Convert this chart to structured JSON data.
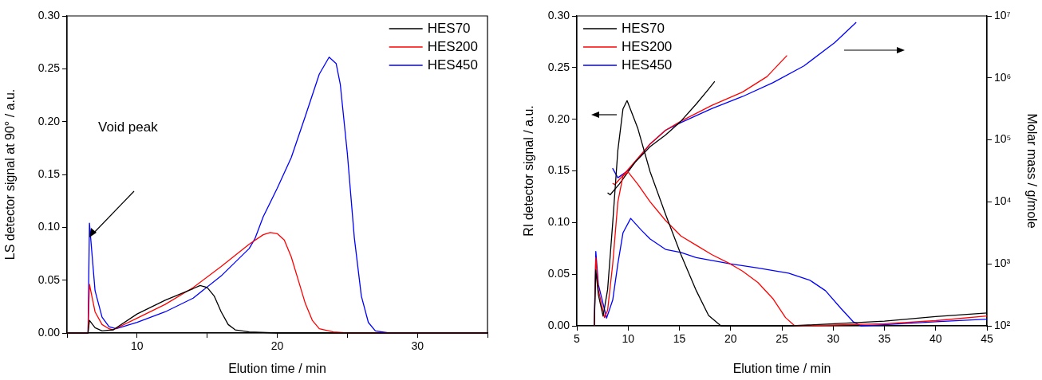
{
  "chart_data": [
    {
      "type": "line",
      "xlabel": "Elution time / min",
      "ylabel": "LS detector signal at 90° / a.u.",
      "xlim": [
        5,
        35
      ],
      "xticks": [
        {
          "value": 5,
          "label": null
        },
        10,
        {
          "value": 15,
          "label": null
        },
        20,
        {
          "value": 25,
          "label": null
        },
        30,
        {
          "value": 35,
          "label": null
        }
      ],
      "ylim": [
        0,
        0.3
      ],
      "yticks": [
        {
          "value": 0,
          "label": "0.00"
        },
        {
          "value": 0.05,
          "label": "0.05"
        },
        {
          "value": 0.1,
          "label": "0.10"
        },
        {
          "value": 0.15,
          "label": "0.15"
        },
        {
          "value": 0.2,
          "label": "0.20"
        },
        {
          "value": 0.25,
          "label": "0.25"
        },
        {
          "value": 0.3,
          "label": "0.30"
        }
      ],
      "legend": "top right",
      "annotations": [
        "Void peak"
      ],
      "series": [
        {
          "name": "HES70",
          "color": "#000000",
          "x": [
            5,
            6.5,
            6.6,
            7,
            7.5,
            8.3,
            10,
            12,
            14,
            14.5,
            15,
            15.5,
            16,
            16.5,
            17,
            18,
            20,
            25,
            35
          ],
          "values": [
            0,
            0,
            0.012,
            0.005,
            0.002,
            0.003,
            0.018,
            0.031,
            0.042,
            0.045,
            0.043,
            0.035,
            0.02,
            0.008,
            0.003,
            0.001,
            0,
            0,
            0
          ]
        },
        {
          "name": "HES200",
          "color": "#ff0000",
          "x": [
            5,
            6.5,
            6.6,
            7,
            7.5,
            8,
            8.3,
            10,
            12,
            14,
            16,
            18,
            19,
            19.5,
            20,
            20.5,
            21,
            21.5,
            22,
            22.5,
            23,
            24,
            25,
            35
          ],
          "values": [
            0,
            0,
            0.046,
            0.02,
            0.008,
            0.004,
            0.003,
            0.014,
            0.027,
            0.043,
            0.063,
            0.084,
            0.093,
            0.095,
            0.094,
            0.088,
            0.072,
            0.05,
            0.028,
            0.012,
            0.004,
            0.001,
            0,
            0
          ]
        },
        {
          "name": "HES450",
          "color": "#0000ff",
          "x": [
            5,
            6.5,
            6.6,
            7,
            7.5,
            8,
            8.5,
            10,
            12,
            14,
            16,
            18,
            18.4,
            19,
            20,
            21,
            22,
            23,
            23.7,
            24.2,
            24.5,
            25,
            25.5,
            26,
            26.5,
            27,
            28,
            35
          ],
          "values": [
            0,
            0,
            0.104,
            0.04,
            0.015,
            0.006,
            0.004,
            0.01,
            0.02,
            0.033,
            0.054,
            0.08,
            0.089,
            0.11,
            0.137,
            0.166,
            0.205,
            0.245,
            0.261,
            0.255,
            0.235,
            0.17,
            0.09,
            0.035,
            0.01,
            0.002,
            0,
            0
          ]
        }
      ]
    },
    {
      "type": "line",
      "xlabel": "Elution time / min",
      "ylabel": "RI detector signal / a.u.",
      "y2label": "Molar mass / g/mole",
      "xlim": [
        5,
        45
      ],
      "xticks": [
        5,
        10,
        15,
        20,
        25,
        30,
        35,
        40,
        45
      ],
      "ylim": [
        0,
        0.3
      ],
      "yticks": [
        {
          "value": 0,
          "label": "0.00"
        },
        {
          "value": 0.05,
          "label": "0.05"
        },
        {
          "value": 0.1,
          "label": "0.10"
        },
        {
          "value": 0.15,
          "label": "0.15"
        },
        {
          "value": 0.2,
          "label": "0.20"
        },
        {
          "value": 0.25,
          "label": "0.25"
        },
        {
          "value": 0.3,
          "label": "0.30"
        }
      ],
      "log": "y2",
      "y2lim": [
        100,
        10000000
      ],
      "y2ticks": [
        {
          "value": 100,
          "label": "10²"
        },
        {
          "value": 1000,
          "label": "10³"
        },
        {
          "value": 10000,
          "label": "10⁴"
        },
        {
          "value": 100000,
          "label": "10⁵"
        },
        {
          "value": 1000000,
          "label": "10⁶"
        },
        {
          "value": 10000000,
          "label": "10⁷"
        }
      ],
      "legend": "top left",
      "series": [
        {
          "name": "HES70",
          "color": "#000000",
          "x": [
            6.7,
            6.85,
            7.1,
            7.56,
            8,
            8.5,
            9,
            9.5,
            9.9,
            10.95,
            12.15,
            13.65,
            15.15,
            16.65,
            17.85,
            19.05,
            26,
            35,
            40,
            45
          ],
          "values": [
            0,
            0.054,
            0.03,
            0.0093,
            0.035,
            0.1,
            0.17,
            0.21,
            0.218,
            0.191,
            0.149,
            0.108,
            0.069,
            0.034,
            0.01,
            0,
            0,
            0.0045,
            0.009,
            0.0125
          ]
        },
        {
          "name": "HES200",
          "color": "#ff0000",
          "x": [
            6.7,
            6.85,
            7.1,
            7.7,
            8,
            8.5,
            9,
            9.5,
            10,
            10.95,
            12.15,
            13.65,
            15.15,
            16.65,
            18.15,
            19.95,
            21.15,
            22.65,
            24.15,
            25.35,
            26.25,
            27,
            35,
            40,
            45
          ],
          "values": [
            0,
            0.066,
            0.035,
            0.008,
            0.015,
            0.06,
            0.12,
            0.145,
            0.149,
            0.137,
            0.12,
            0.102,
            0.087,
            0.078,
            0.069,
            0.06,
            0.053,
            0.042,
            0.026,
            0.008,
            0,
            0,
            0.002,
            0.005,
            0.0095
          ]
        },
        {
          "name": "HES450",
          "color": "#0000ff",
          "x": [
            6.7,
            6.85,
            7.1,
            7.9,
            8.5,
            9,
            9.5,
            10.25,
            11.25,
            12.15,
            13.65,
            15.15,
            16.65,
            19.95,
            22.65,
            25.65,
            27.75,
            29.25,
            30.75,
            31.95,
            32.7,
            35,
            40,
            45
          ],
          "values": [
            0,
            0.072,
            0.04,
            0.0075,
            0.025,
            0.06,
            0.09,
            0.104,
            0.093,
            0.084,
            0.074,
            0.071,
            0.066,
            0.06,
            0.056,
            0.051,
            0.044,
            0.034,
            0.017,
            0.004,
            0,
            0.001,
            0.004,
            0.0065
          ]
        },
        {
          "color": "#000000",
          "axis": "y2",
          "x": [
            8,
            8.25,
            9.15,
            10.65,
            12.15,
            13.65,
            15.15,
            16.65,
            17.85,
            18.45
          ],
          "values": [
            14000,
            13000,
            19500,
            43000,
            78000,
            120000,
            200000,
            380000,
            660000,
            880000
          ]
        },
        {
          "color": "#ff0000",
          "axis": "y2",
          "x": [
            8.48,
            8.7,
            10.05,
            12.15,
            13.65,
            15.15,
            18.15,
            21.15,
            23.55,
            25.5
          ],
          "values": [
            20000,
            19000,
            34000,
            86000,
            143000,
            200000,
            360000,
            590000,
            1050000,
            2300000
          ]
        },
        {
          "color": "#0000ff",
          "axis": "y2",
          "x": [
            8.48,
            9,
            10.05,
            12.15,
            13.65,
            15.15,
            18.15,
            21.15,
            24.15,
            27.15,
            30.15,
            32.25
          ],
          "values": [
            35000,
            24500,
            32500,
            86000,
            143000,
            190000,
            320000,
            500000,
            840000,
            1560000,
            3700000,
            7900000
          ]
        }
      ]
    }
  ]
}
